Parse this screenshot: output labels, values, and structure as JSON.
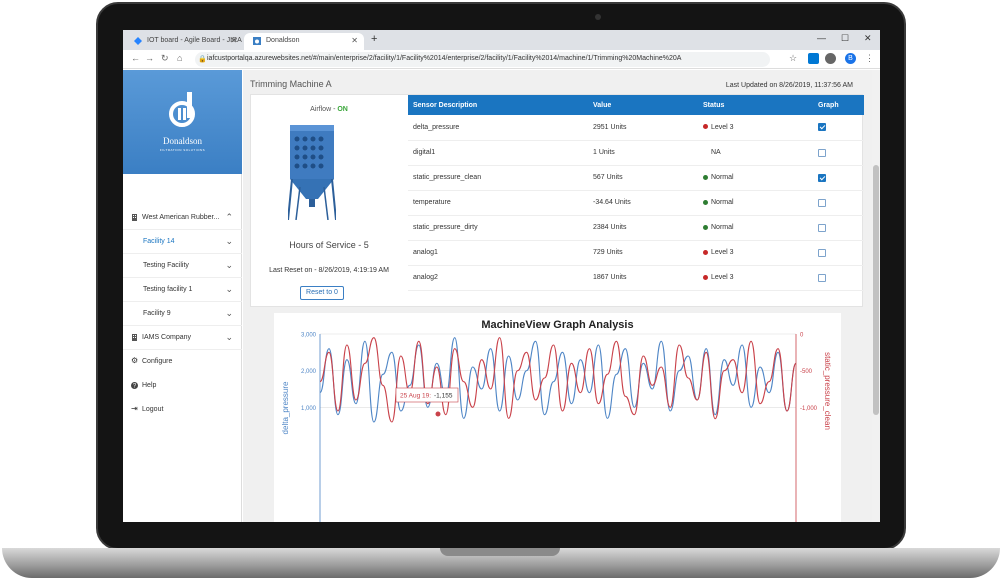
{
  "browser": {
    "tabs": [
      {
        "title": "IOT board - Agile Board - JIRA",
        "active": false
      },
      {
        "title": "Donaldson",
        "active": true
      }
    ],
    "new_tab": "+",
    "window_controls": [
      "—",
      "☐",
      "✕"
    ],
    "url": "iafcustportalqa.azurewebsites.net/#/main/enterprise/2/facility/1/Facility%2014/enterprise/2/facility/1/Facility%2014/machine/1/Trimming%20Machine%20A",
    "profile_initial": "B"
  },
  "sidebar": {
    "brand": "Donaldson",
    "tagline": "FILTRATION SOLUTIONS",
    "items": [
      {
        "label": "West American Rubber...",
        "icon": "building-icon",
        "chevron": "⌃"
      },
      {
        "label": "Facility 14",
        "chevron": "⌄",
        "active": true
      },
      {
        "label": "Testing Facility",
        "chevron": "⌄"
      },
      {
        "label": "Testing facility 1",
        "chevron": "⌄"
      },
      {
        "label": "Facility 9",
        "chevron": "⌄"
      },
      {
        "label": "IAMS Company",
        "icon": "building-icon",
        "chevron": "⌄"
      },
      {
        "label": "Configure",
        "icon": "gear-icon"
      },
      {
        "label": "Help",
        "icon": "help-icon"
      },
      {
        "label": "Logout",
        "icon": "logout-icon"
      }
    ]
  },
  "main": {
    "title": "Trimming Machine A",
    "last_updated": "Last Updated on 8/26/2019, 11:37:56 AM",
    "airflow_label": "Airflow - ",
    "airflow_status": "ON",
    "hours_of_service": "Hours of Service - 5",
    "last_reset": "Last Reset on - 8/26/2019, 4:19:19 AM",
    "reset_button": "Reset to 0"
  },
  "table": {
    "headers": [
      "Sensor Description",
      "Value",
      "Status",
      "Graph"
    ],
    "rows": [
      {
        "desc": "delta_pressure",
        "value": "2951 Units",
        "status": "Level 3",
        "status_color": "#c62828",
        "graph": true
      },
      {
        "desc": "digital1",
        "value": "1 Units",
        "status": "NA",
        "status_color": "",
        "graph": false
      },
      {
        "desc": "static_pressure_clean",
        "value": "567 Units",
        "status": "Normal",
        "status_color": "#2e7d32",
        "graph": true
      },
      {
        "desc": "temperature",
        "value": "-34.64 Units",
        "status": "Normal",
        "status_color": "#2e7d32",
        "graph": false
      },
      {
        "desc": "static_pressure_dirty",
        "value": "2384 Units",
        "status": "Normal",
        "status_color": "#2e7d32",
        "graph": false
      },
      {
        "desc": "analog1",
        "value": "729 Units",
        "status": "Level 3",
        "status_color": "#c62828",
        "graph": false
      },
      {
        "desc": "analog2",
        "value": "1867 Units",
        "status": "Level 3",
        "status_color": "#c62828",
        "graph": false
      }
    ]
  },
  "chart_data": {
    "type": "line",
    "title": "MachineView Graph Analysis",
    "ylabel_left": "delta_pressure",
    "ylabel_right": "static_pressure_clean",
    "left_ticks": [
      "3,000",
      "2,000",
      "1,000"
    ],
    "right_ticks": [
      "0",
      "-500",
      "-1,000"
    ],
    "left_ylim": [
      0,
      3000
    ],
    "right_ylim": [
      -1500,
      0
    ],
    "tooltip": {
      "label": "25 Aug 19:",
      "value": "-1,155"
    },
    "series": [
      {
        "name": "delta_pressure",
        "color": "#4f86c6",
        "values": [
          1400,
          2600,
          800,
          2300,
          1100,
          2800,
          600,
          1900,
          2500,
          900,
          1600,
          2700,
          1000,
          2200,
          1300,
          2900,
          700,
          2100,
          1500,
          2600,
          900,
          2400,
          1200,
          2000,
          2800,
          800,
          1700,
          2500,
          1100,
          2300,
          1400,
          2700,
          700,
          1900,
          2600,
          1000,
          2200,
          1500,
          2800,
          900,
          2000,
          2400,
          1200,
          2600,
          800,
          2300,
          1600,
          2700,
          1000,
          2100,
          1400,
          2500,
          900,
          2200
        ]
      },
      {
        "name": "static_pressure_clean",
        "color": "#c9424a",
        "values": [
          -650,
          -250,
          -1050,
          -150,
          -900,
          -400,
          -50,
          -700,
          -1200,
          -300,
          -800,
          -100,
          -950,
          -450,
          -1100,
          -200,
          -650,
          -1000,
          -350,
          -750,
          -50,
          -1150,
          -500,
          -250,
          -900,
          -600,
          -150,
          -1050,
          -400,
          -800,
          -200,
          -950,
          -550,
          -100,
          -850,
          -1100,
          -300,
          -700,
          -450,
          -1000,
          -150,
          -600,
          -900,
          -250,
          -1155,
          -500,
          -350,
          -800,
          -100,
          -950,
          -650,
          -200,
          -1050,
          -400
        ]
      }
    ]
  }
}
